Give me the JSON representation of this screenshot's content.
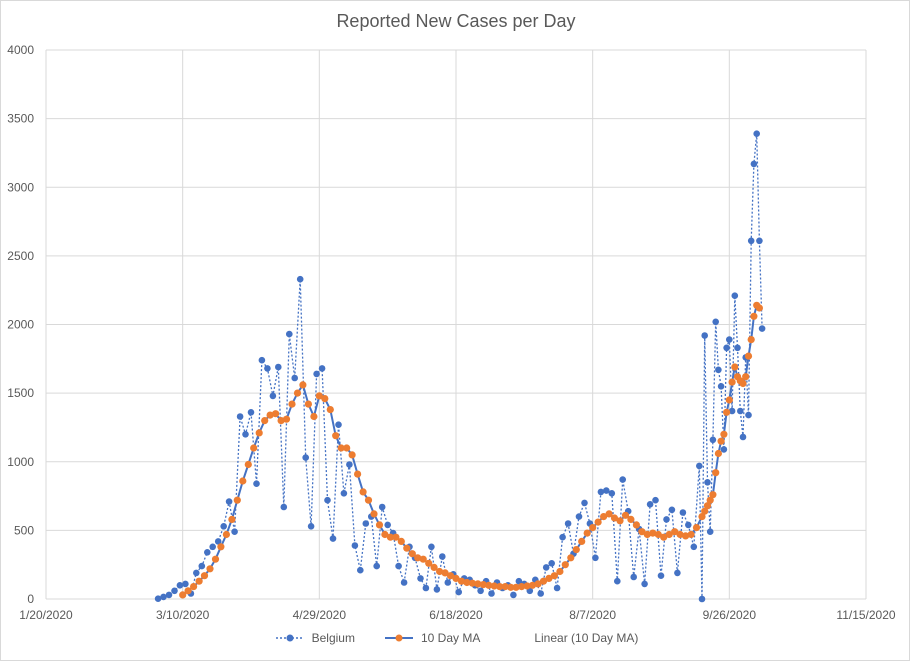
{
  "chart_data": {
    "type": "line",
    "title": "Reported New Cases per Day",
    "xlabel": "",
    "ylabel": "",
    "x_axis": {
      "type": "date",
      "min": "2020-01-20",
      "max": "2020-11-15",
      "tick_labels": [
        "1/20/2020",
        "3/10/2020",
        "4/29/2020",
        "6/18/2020",
        "8/7/2020",
        "9/26/2020",
        "11/15/2020"
      ],
      "tick_dates": [
        "2020-01-20",
        "2020-03-10",
        "2020-04-29",
        "2020-06-18",
        "2020-08-07",
        "2020-09-26",
        "2020-11-15"
      ]
    },
    "y_axis": {
      "min": 0,
      "max": 4000,
      "tick_labels": [
        "0",
        "500",
        "1000",
        "1500",
        "2000",
        "2500",
        "3000",
        "3500",
        "4000"
      ],
      "tick_values": [
        0,
        500,
        1000,
        1500,
        2000,
        2500,
        3000,
        3500,
        4000
      ]
    },
    "grid": "on",
    "legend_position": "bottom",
    "colors": {
      "belgium": "#4472c4",
      "ma": "#ed7d31",
      "grid": "#d9d9d9",
      "text": "#595959"
    },
    "legend": [
      {
        "name": "Belgium",
        "style": "dotted-line-circle",
        "color": "#4472c4"
      },
      {
        "name": "10 Day MA",
        "style": "solid-line-circle",
        "color": "#ed7d31"
      },
      {
        "name": "Linear (10 Day MA)",
        "style": "none",
        "color": "#ed7d31"
      }
    ],
    "series": [
      {
        "name": "Belgium",
        "points": [
          [
            "2020-03-01",
            2
          ],
          [
            "2020-03-03",
            15
          ],
          [
            "2020-03-05",
            30
          ],
          [
            "2020-03-07",
            60
          ],
          [
            "2020-03-09",
            100
          ],
          [
            "2020-03-11",
            110
          ],
          [
            "2020-03-13",
            40
          ],
          [
            "2020-03-15",
            190
          ],
          [
            "2020-03-17",
            240
          ],
          [
            "2020-03-19",
            340
          ],
          [
            "2020-03-21",
            380
          ],
          [
            "2020-03-23",
            420
          ],
          [
            "2020-03-25",
            530
          ],
          [
            "2020-03-27",
            710
          ],
          [
            "2020-03-29",
            490
          ],
          [
            "2020-03-31",
            1330
          ],
          [
            "2020-04-02",
            1200
          ],
          [
            "2020-04-04",
            1360
          ],
          [
            "2020-04-06",
            840
          ],
          [
            "2020-04-08",
            1740
          ],
          [
            "2020-04-10",
            1680
          ],
          [
            "2020-04-12",
            1480
          ],
          [
            "2020-04-14",
            1690
          ],
          [
            "2020-04-16",
            670
          ],
          [
            "2020-04-18",
            1930
          ],
          [
            "2020-04-20",
            1610
          ],
          [
            "2020-04-22",
            2330
          ],
          [
            "2020-04-24",
            1030
          ],
          [
            "2020-04-26",
            530
          ],
          [
            "2020-04-28",
            1640
          ],
          [
            "2020-04-30",
            1680
          ],
          [
            "2020-05-02",
            720
          ],
          [
            "2020-05-04",
            440
          ],
          [
            "2020-05-06",
            1270
          ],
          [
            "2020-05-08",
            770
          ],
          [
            "2020-05-10",
            980
          ],
          [
            "2020-05-12",
            390
          ],
          [
            "2020-05-14",
            210
          ],
          [
            "2020-05-16",
            550
          ],
          [
            "2020-05-18",
            600
          ],
          [
            "2020-05-20",
            240
          ],
          [
            "2020-05-22",
            670
          ],
          [
            "2020-05-24",
            540
          ],
          [
            "2020-05-26",
            480
          ],
          [
            "2020-05-28",
            240
          ],
          [
            "2020-05-30",
            120
          ],
          [
            "2020-06-01",
            380
          ],
          [
            "2020-06-03",
            300
          ],
          [
            "2020-06-05",
            150
          ],
          [
            "2020-06-07",
            80
          ],
          [
            "2020-06-09",
            380
          ],
          [
            "2020-06-11",
            70
          ],
          [
            "2020-06-13",
            310
          ],
          [
            "2020-06-15",
            120
          ],
          [
            "2020-06-17",
            180
          ],
          [
            "2020-06-19",
            50
          ],
          [
            "2020-06-21",
            150
          ],
          [
            "2020-06-23",
            140
          ],
          [
            "2020-06-25",
            100
          ],
          [
            "2020-06-27",
            60
          ],
          [
            "2020-06-29",
            130
          ],
          [
            "2020-07-01",
            40
          ],
          [
            "2020-07-03",
            120
          ],
          [
            "2020-07-05",
            80
          ],
          [
            "2020-07-07",
            100
          ],
          [
            "2020-07-09",
            30
          ],
          [
            "2020-07-11",
            130
          ],
          [
            "2020-07-13",
            110
          ],
          [
            "2020-07-15",
            60
          ],
          [
            "2020-07-17",
            140
          ],
          [
            "2020-07-19",
            40
          ],
          [
            "2020-07-21",
            230
          ],
          [
            "2020-07-23",
            260
          ],
          [
            "2020-07-25",
            80
          ],
          [
            "2020-07-27",
            450
          ],
          [
            "2020-07-29",
            550
          ],
          [
            "2020-07-31",
            330
          ],
          [
            "2020-08-02",
            600
          ],
          [
            "2020-08-04",
            700
          ],
          [
            "2020-08-06",
            550
          ],
          [
            "2020-08-08",
            300
          ],
          [
            "2020-08-10",
            780
          ],
          [
            "2020-08-12",
            790
          ],
          [
            "2020-08-14",
            770
          ],
          [
            "2020-08-16",
            130
          ],
          [
            "2020-08-18",
            870
          ],
          [
            "2020-08-20",
            640
          ],
          [
            "2020-08-22",
            160
          ],
          [
            "2020-08-24",
            510
          ],
          [
            "2020-08-26",
            110
          ],
          [
            "2020-08-28",
            690
          ],
          [
            "2020-08-30",
            720
          ],
          [
            "2020-09-01",
            170
          ],
          [
            "2020-09-03",
            580
          ],
          [
            "2020-09-05",
            650
          ],
          [
            "2020-09-07",
            190
          ],
          [
            "2020-09-09",
            630
          ],
          [
            "2020-09-11",
            540
          ],
          [
            "2020-09-13",
            380
          ],
          [
            "2020-09-15",
            970
          ],
          [
            "2020-09-16",
            0
          ],
          [
            "2020-09-17",
            1920
          ],
          [
            "2020-09-18",
            850
          ],
          [
            "2020-09-19",
            490
          ],
          [
            "2020-09-20",
            1160
          ],
          [
            "2020-09-21",
            2020
          ],
          [
            "2020-09-22",
            1670
          ],
          [
            "2020-09-23",
            1550
          ],
          [
            "2020-09-24",
            1090
          ],
          [
            "2020-09-25",
            1830
          ],
          [
            "2020-09-26",
            1890
          ],
          [
            "2020-09-27",
            1370
          ],
          [
            "2020-09-28",
            2210
          ],
          [
            "2020-09-29",
            1830
          ],
          [
            "2020-09-30",
            1370
          ],
          [
            "2020-10-01",
            1180
          ],
          [
            "2020-10-02",
            1760
          ],
          [
            "2020-10-03",
            1340
          ],
          [
            "2020-10-04",
            2610
          ],
          [
            "2020-10-05",
            3170
          ],
          [
            "2020-10-06",
            3390
          ],
          [
            "2020-10-07",
            2610
          ],
          [
            "2020-10-08",
            1970
          ]
        ]
      },
      {
        "name": "10 Day MA",
        "points": [
          [
            "2020-03-10",
            30
          ],
          [
            "2020-03-12",
            60
          ],
          [
            "2020-03-14",
            90
          ],
          [
            "2020-03-16",
            130
          ],
          [
            "2020-03-18",
            170
          ],
          [
            "2020-03-20",
            220
          ],
          [
            "2020-03-22",
            290
          ],
          [
            "2020-03-24",
            380
          ],
          [
            "2020-03-26",
            470
          ],
          [
            "2020-03-28",
            580
          ],
          [
            "2020-03-30",
            720
          ],
          [
            "2020-04-01",
            860
          ],
          [
            "2020-04-03",
            980
          ],
          [
            "2020-04-05",
            1100
          ],
          [
            "2020-04-07",
            1210
          ],
          [
            "2020-04-09",
            1300
          ],
          [
            "2020-04-11",
            1340
          ],
          [
            "2020-04-13",
            1350
          ],
          [
            "2020-04-15",
            1300
          ],
          [
            "2020-04-17",
            1310
          ],
          [
            "2020-04-19",
            1420
          ],
          [
            "2020-04-21",
            1500
          ],
          [
            "2020-04-23",
            1560
          ],
          [
            "2020-04-25",
            1420
          ],
          [
            "2020-04-27",
            1330
          ],
          [
            "2020-04-29",
            1480
          ],
          [
            "2020-05-01",
            1460
          ],
          [
            "2020-05-03",
            1380
          ],
          [
            "2020-05-05",
            1190
          ],
          [
            "2020-05-07",
            1100
          ],
          [
            "2020-05-09",
            1100
          ],
          [
            "2020-05-11",
            1050
          ],
          [
            "2020-05-13",
            910
          ],
          [
            "2020-05-15",
            780
          ],
          [
            "2020-05-17",
            720
          ],
          [
            "2020-05-19",
            620
          ],
          [
            "2020-05-21",
            540
          ],
          [
            "2020-05-23",
            470
          ],
          [
            "2020-05-25",
            450
          ],
          [
            "2020-05-27",
            450
          ],
          [
            "2020-05-29",
            420
          ],
          [
            "2020-05-31",
            370
          ],
          [
            "2020-06-02",
            330
          ],
          [
            "2020-06-04",
            300
          ],
          [
            "2020-06-06",
            290
          ],
          [
            "2020-06-08",
            260
          ],
          [
            "2020-06-10",
            230
          ],
          [
            "2020-06-12",
            200
          ],
          [
            "2020-06-14",
            190
          ],
          [
            "2020-06-16",
            170
          ],
          [
            "2020-06-18",
            150
          ],
          [
            "2020-06-20",
            130
          ],
          [
            "2020-06-22",
            120
          ],
          [
            "2020-06-24",
            115
          ],
          [
            "2020-06-26",
            110
          ],
          [
            "2020-06-28",
            105
          ],
          [
            "2020-06-30",
            100
          ],
          [
            "2020-07-02",
            95
          ],
          [
            "2020-07-04",
            90
          ],
          [
            "2020-07-06",
            90
          ],
          [
            "2020-07-08",
            85
          ],
          [
            "2020-07-10",
            85
          ],
          [
            "2020-07-12",
            90
          ],
          [
            "2020-07-14",
            95
          ],
          [
            "2020-07-16",
            100
          ],
          [
            "2020-07-18",
            110
          ],
          [
            "2020-07-20",
            130
          ],
          [
            "2020-07-22",
            150
          ],
          [
            "2020-07-24",
            170
          ],
          [
            "2020-07-26",
            200
          ],
          [
            "2020-07-28",
            250
          ],
          [
            "2020-07-30",
            300
          ],
          [
            "2020-08-01",
            360
          ],
          [
            "2020-08-03",
            420
          ],
          [
            "2020-08-05",
            480
          ],
          [
            "2020-08-07",
            520
          ],
          [
            "2020-08-09",
            560
          ],
          [
            "2020-08-11",
            600
          ],
          [
            "2020-08-13",
            620
          ],
          [
            "2020-08-15",
            590
          ],
          [
            "2020-08-17",
            570
          ],
          [
            "2020-08-19",
            610
          ],
          [
            "2020-08-21",
            580
          ],
          [
            "2020-08-23",
            540
          ],
          [
            "2020-08-25",
            490
          ],
          [
            "2020-08-27",
            470
          ],
          [
            "2020-08-29",
            480
          ],
          [
            "2020-08-31",
            470
          ],
          [
            "2020-09-02",
            450
          ],
          [
            "2020-09-04",
            470
          ],
          [
            "2020-09-06",
            490
          ],
          [
            "2020-09-08",
            470
          ],
          [
            "2020-09-10",
            460
          ],
          [
            "2020-09-12",
            470
          ],
          [
            "2020-09-14",
            520
          ],
          [
            "2020-09-16",
            600
          ],
          [
            "2020-09-17",
            640
          ],
          [
            "2020-09-18",
            680
          ],
          [
            "2020-09-19",
            720
          ],
          [
            "2020-09-20",
            760
          ],
          [
            "2020-09-21",
            920
          ],
          [
            "2020-09-22",
            1060
          ],
          [
            "2020-09-23",
            1150
          ],
          [
            "2020-09-24",
            1200
          ],
          [
            "2020-09-25",
            1360
          ],
          [
            "2020-09-26",
            1450
          ],
          [
            "2020-09-27",
            1580
          ],
          [
            "2020-09-28",
            1690
          ],
          [
            "2020-09-29",
            1620
          ],
          [
            "2020-09-30",
            1590
          ],
          [
            "2020-10-01",
            1570
          ],
          [
            "2020-10-02",
            1620
          ],
          [
            "2020-10-03",
            1770
          ],
          [
            "2020-10-04",
            1890
          ],
          [
            "2020-10-05",
            2060
          ],
          [
            "2020-10-06",
            2140
          ],
          [
            "2020-10-07",
            2120
          ]
        ]
      }
    ]
  }
}
